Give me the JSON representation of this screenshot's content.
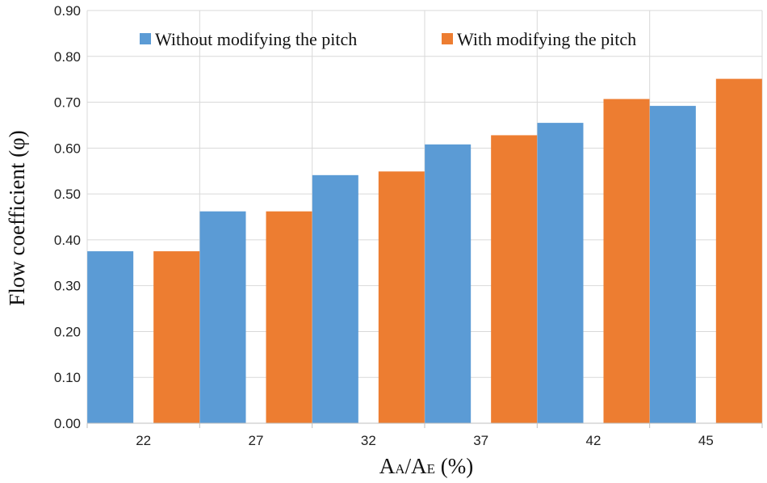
{
  "chart_data": {
    "type": "bar",
    "title": "",
    "categories": [
      "22",
      "27",
      "32",
      "37",
      "42",
      "45"
    ],
    "series": [
      {
        "name": "Without modifying the pitch",
        "color": "#5b9bd5",
        "values": [
          0.375,
          0.462,
          0.541,
          0.608,
          0.655,
          0.692
        ]
      },
      {
        "name": "With modifying the pitch",
        "color": "#ed7d31",
        "values": [
          0.375,
          0.462,
          0.549,
          0.628,
          0.707,
          0.751
        ]
      }
    ],
    "ylabel": "Flow coefficient (φ)",
    "xlabel": {
      "main_a": "A",
      "sub_a": "A",
      "slash": "/",
      "main_e": "A",
      "sub_e": "E",
      "unit": " (%)"
    },
    "ylim": [
      0,
      0.9
    ],
    "yticks": [
      "0.00",
      "0.10",
      "0.20",
      "0.30",
      "0.40",
      "0.50",
      "0.60",
      "0.70",
      "0.80",
      "0.90"
    ],
    "grid": true,
    "legend_position": "top"
  }
}
